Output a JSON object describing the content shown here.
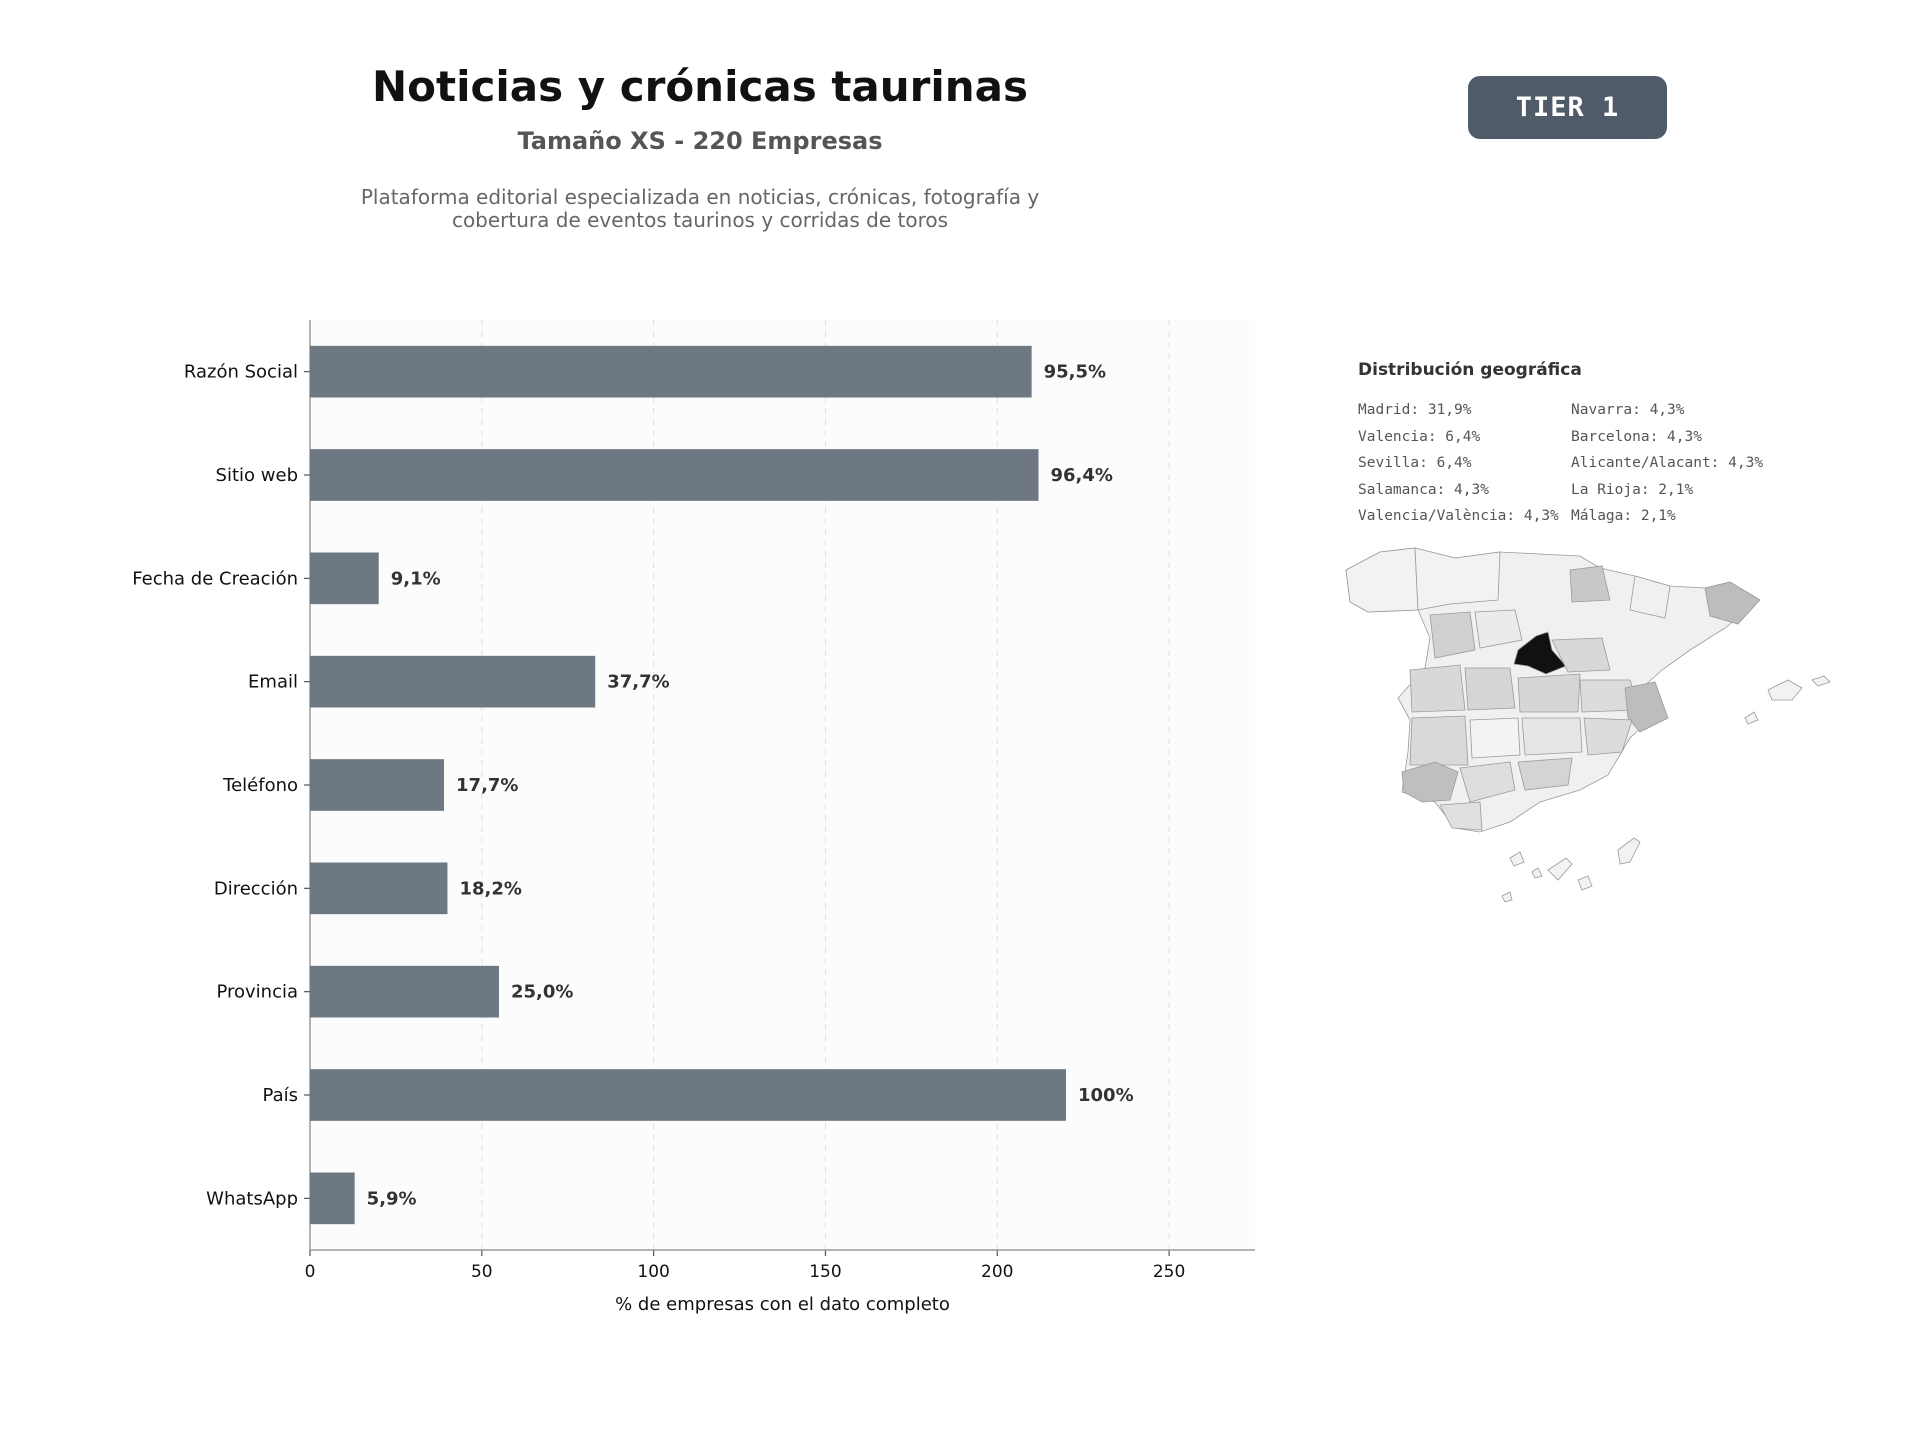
{
  "header": {
    "title": "Noticias y crónicas taurinas",
    "subtitle": "Tamaño XS - 220 Empresas",
    "description_line1": "Plataforma editorial especializada en noticias, crónicas, fotografía y",
    "description_line2": "cobertura de eventos taurinos y corridas de toros",
    "tier_label": "TIER 1"
  },
  "colors": {
    "bar": "#6e7882",
    "plot_bg": "#fcfcfc",
    "badge": "#4f5b69",
    "map_highlight": "#111111"
  },
  "chart_data": {
    "type": "bar",
    "orientation": "horizontal",
    "categories": [
      "Razón Social",
      "Sitio web",
      "Fecha de Creación",
      "Email",
      "Teléfono",
      "Dirección",
      "Provincia",
      "País",
      "WhatsApp"
    ],
    "values": [
      210,
      212,
      20,
      83,
      39,
      40,
      55,
      220,
      13
    ],
    "value_labels": [
      "95,5%",
      "96,4%",
      "9,1%",
      "37,7%",
      "17,7%",
      "18,2%",
      "25,0%",
      "100%",
      "5,9%"
    ],
    "xlabel": "% de empresas con el dato completo",
    "xlim": [
      0,
      275
    ],
    "xticks": [
      0,
      50,
      100,
      150,
      200,
      250
    ],
    "grid": "vertical dashed"
  },
  "geo": {
    "title": "Distribución geográfica",
    "items": [
      "Madrid: 31,9%",
      "Navarra: 4,3%",
      "Valencia: 6,4%",
      "Barcelona: 4,3%",
      "Sevilla: 6,4%",
      "Alicante/Alacant: 4,3%",
      "Salamanca: 4,3%",
      "La Rioja: 2,1%",
      "Valencia/València: 4,3%",
      "Málaga: 2,1%"
    ]
  }
}
